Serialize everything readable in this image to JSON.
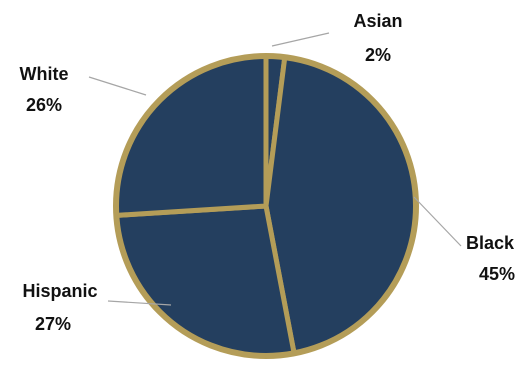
{
  "chart_data": {
    "type": "pie",
    "title": "",
    "slices": [
      {
        "category": "Asian",
        "value": 2,
        "label": "2%"
      },
      {
        "category": "Black",
        "value": 45,
        "label": "45%"
      },
      {
        "category": "Hispanic",
        "value": 27,
        "label": "27%"
      },
      {
        "category": "White",
        "value": 26,
        "label": "26%"
      }
    ],
    "start_angle_deg": 0,
    "direction": "clockwise",
    "data_labels": "outside-with-leader-lines",
    "legend": "none"
  },
  "colors": {
    "slice_fill": "#243f5f",
    "slice_border": "#b49d58",
    "leader_line": "#a6a6a6",
    "label_text": "#111111",
    "background": "#ffffff"
  }
}
